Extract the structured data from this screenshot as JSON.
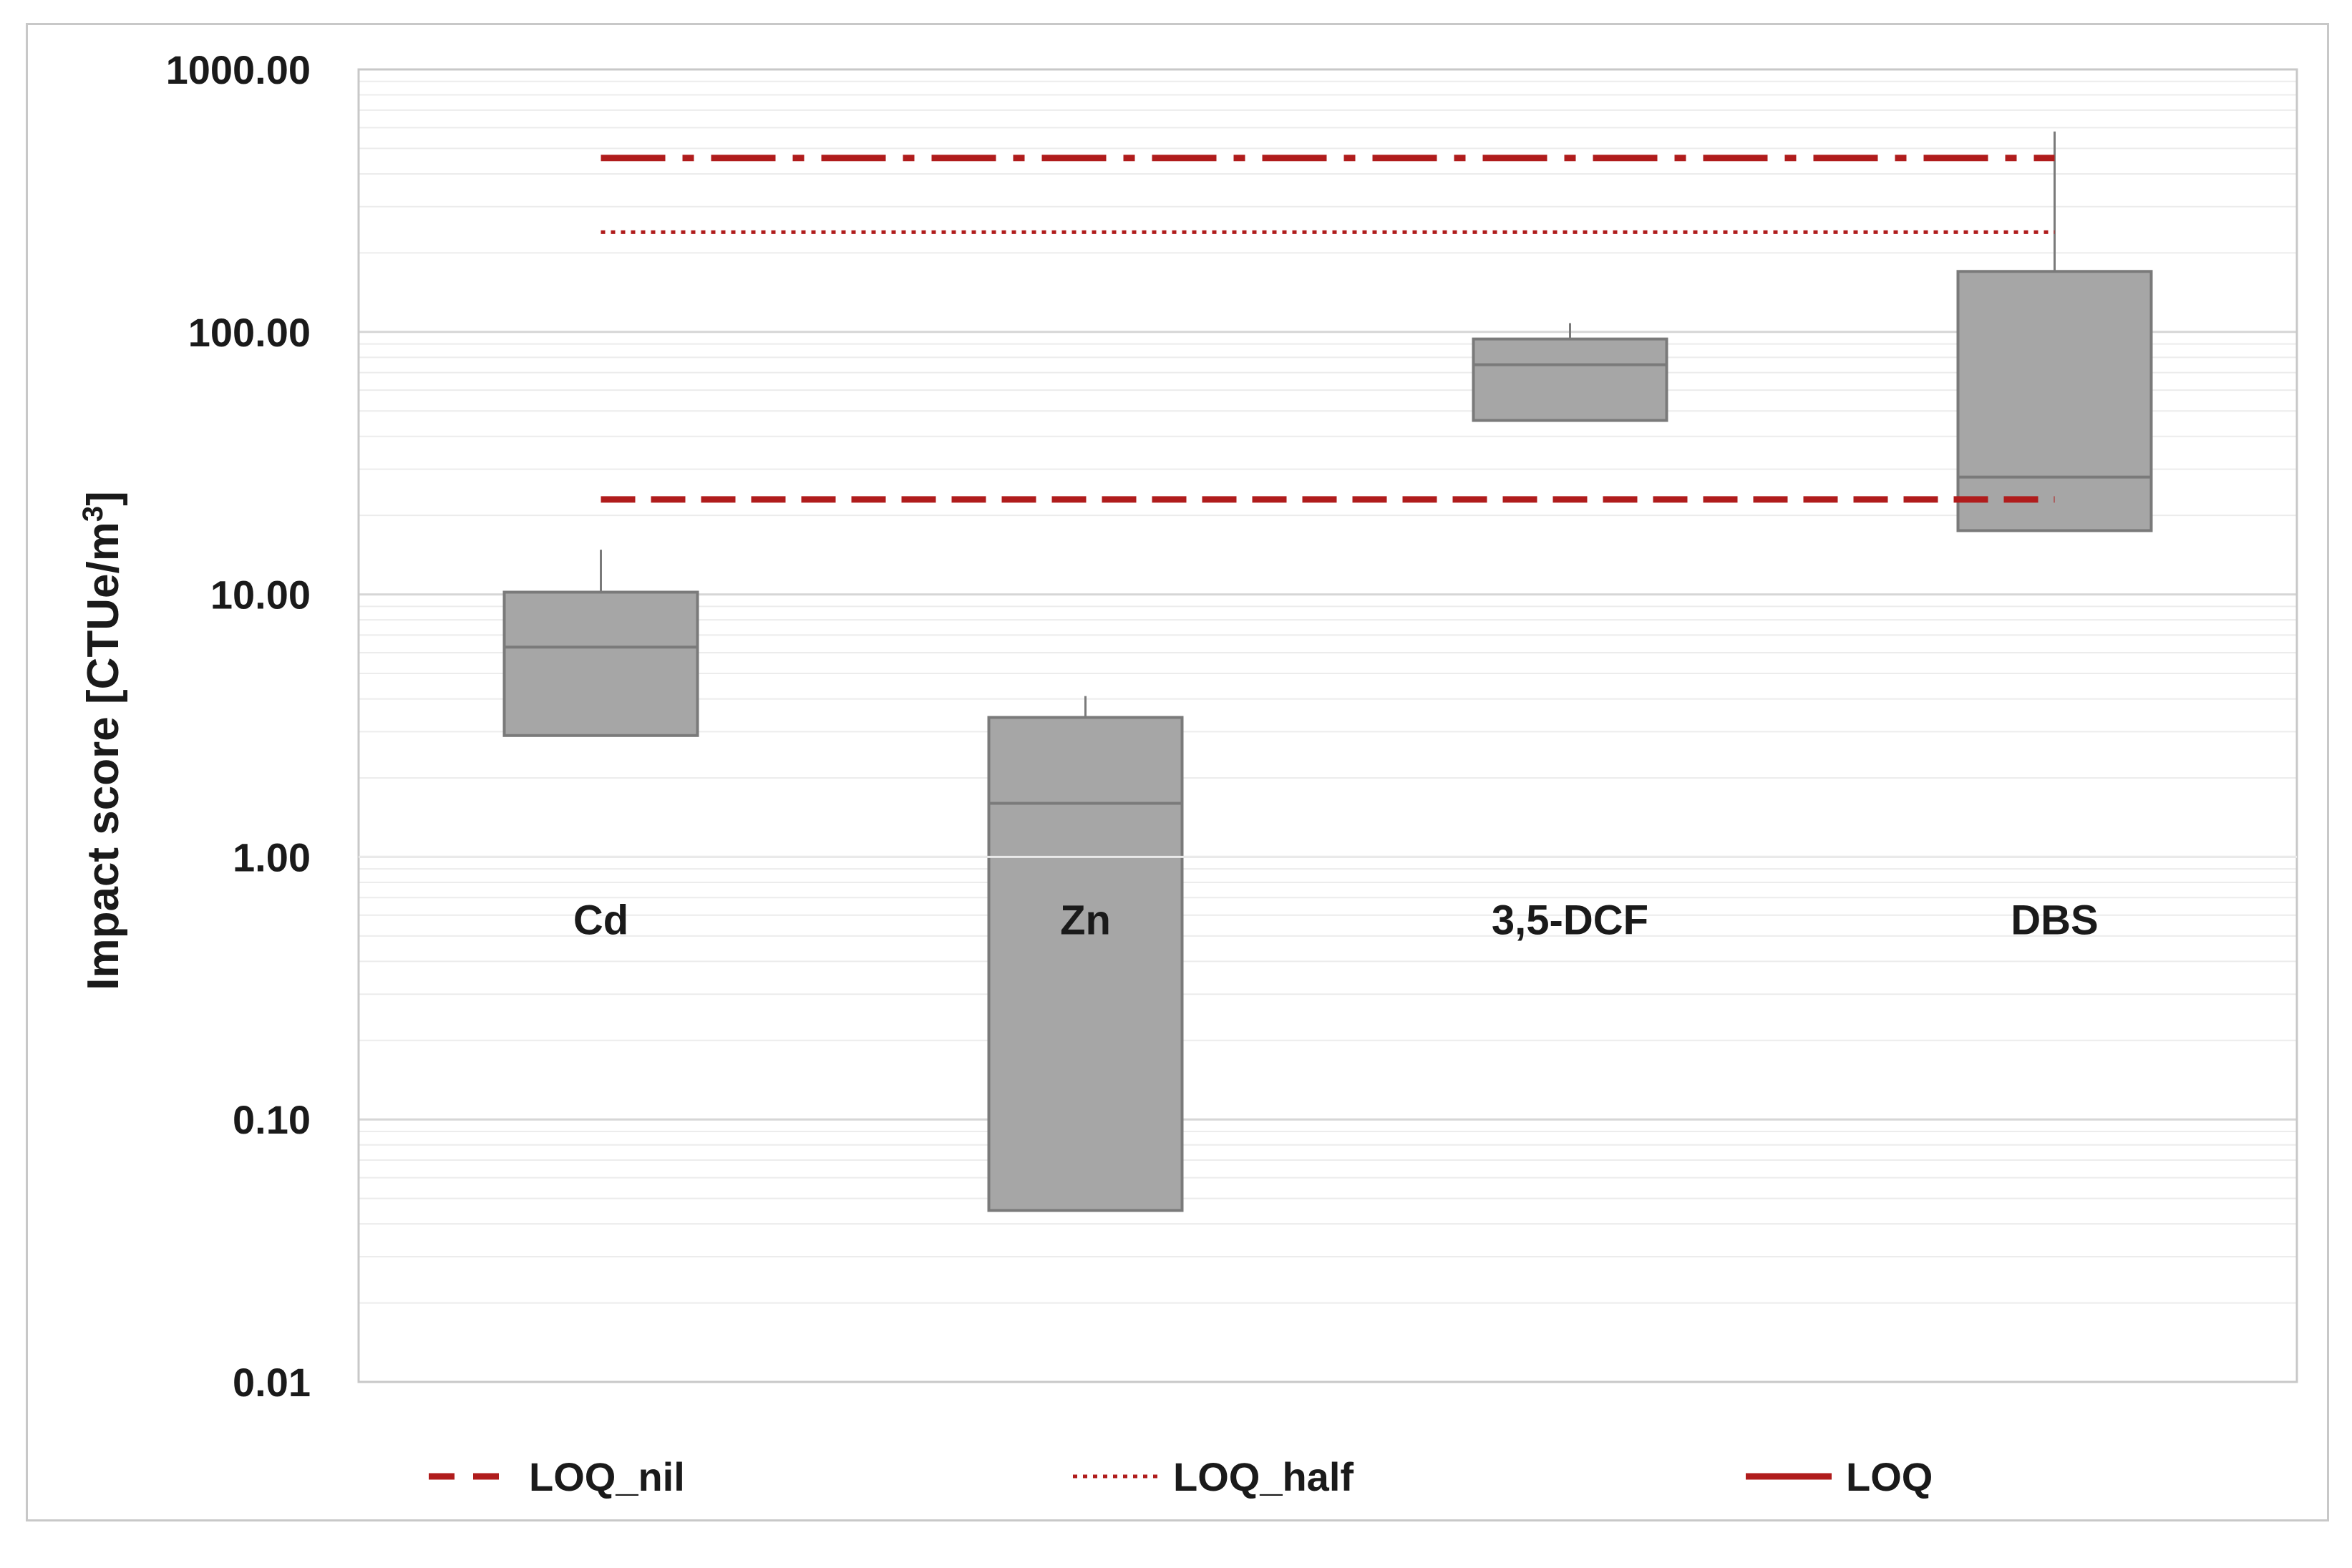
{
  "chart_data": {
    "type": "box",
    "ylabel": "Impact score [CTUe/m",
    "ylabel_sup": "3",
    "ylabel_close": "]",
    "yscale": "log",
    "ylim": [
      0.01,
      1000
    ],
    "yticks": [
      0.01,
      0.1,
      1,
      10,
      100,
      1000
    ],
    "ytick_labels": [
      "0.01",
      "0.10",
      "1.00",
      "10.00",
      "100.00",
      "1000.00"
    ],
    "categories": [
      "Cd",
      "Zn",
      "3,5-DCF",
      "DBS"
    ],
    "boxes": [
      {
        "category": "Cd",
        "min": 2.9,
        "q1": 2.9,
        "median": 6.3,
        "q3": 10.2,
        "max": 14.8
      },
      {
        "category": "Zn",
        "min": 0.045,
        "q1": 0.045,
        "median": 1.6,
        "q3": 3.4,
        "max": 4.1
      },
      {
        "category": "3,5-DCF",
        "min": 46,
        "q1": 46,
        "median": 75,
        "q3": 94,
        "max": 108
      },
      {
        "category": "DBS",
        "min": 17.5,
        "q1": 17.5,
        "median": 28,
        "q3": 170,
        "max": 580
      }
    ],
    "reference_lines": [
      {
        "name": "LOQ_nil",
        "value": 23,
        "style": "dashed",
        "color": "#b01c1c"
      },
      {
        "name": "LOQ_half",
        "value": 240,
        "style": "dotted",
        "color": "#b01c1c"
      },
      {
        "name": "LOQ",
        "value": 460,
        "style": "dash-dot",
        "color": "#b01c1c"
      }
    ],
    "legend": {
      "position": "bottom",
      "entries": [
        "LOQ_nil",
        "LOQ_half",
        "LOQ"
      ]
    },
    "grid": true,
    "minor_grid": true,
    "box_color": "#a6a6a6",
    "box_edge_color": "#7a7a7a"
  }
}
